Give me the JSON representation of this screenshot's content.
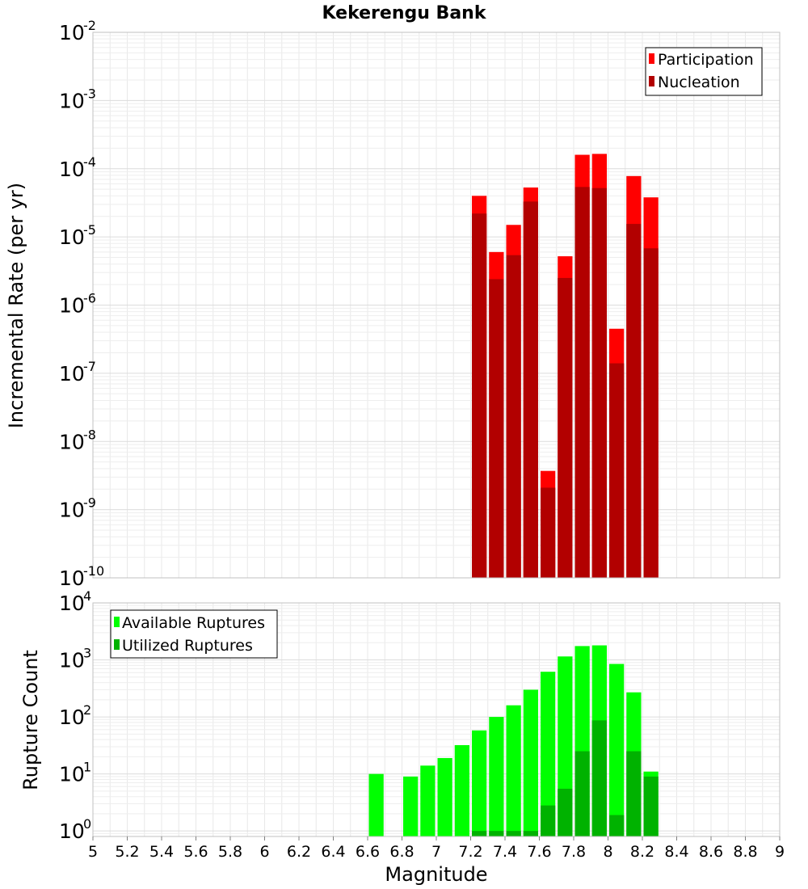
{
  "chart_data": [
    {
      "type": "bar",
      "title": "Kekerengu Bank",
      "ylabel": "Incremental Rate (per yr)",
      "xlabel": "",
      "xlim": [
        5,
        9
      ],
      "ylim": [
        1e-10,
        0.01
      ],
      "yscale": "log",
      "grid": true,
      "legend_position": "top-right",
      "bin_width": 0.1,
      "x": [
        7.25,
        7.35,
        7.45,
        7.55,
        7.65,
        7.75,
        7.85,
        7.95,
        8.05,
        8.15,
        8.25
      ],
      "y_tick_exponents": [
        -10,
        -9,
        -8,
        -7,
        -6,
        -5,
        -4,
        -3,
        -2
      ],
      "series": [
        {
          "name": "Participation",
          "color": "#ff0000",
          "values": [
            4e-05,
            6e-06,
            1.5e-05,
            5.3e-05,
            3.7e-09,
            5.2e-06,
            0.00016,
            0.000165,
            4.5e-07,
            7.8e-05,
            3.8e-05
          ]
        },
        {
          "name": "Nucleation",
          "color": "#b20000",
          "values": [
            2.2e-05,
            2.4e-06,
            5.4e-06,
            3.3e-05,
            2.1e-09,
            2.5e-06,
            5.4e-05,
            5.2e-05,
            1.4e-07,
            1.55e-05,
            6.8e-06
          ]
        }
      ]
    },
    {
      "type": "bar",
      "title": "",
      "ylabel": "Rupture Count",
      "xlabel": "Magnitude",
      "xlim": [
        5,
        9
      ],
      "ylim": [
        0.8,
        10000.0
      ],
      "yscale": "log",
      "grid": true,
      "legend_position": "top-left",
      "bin_width": 0.1,
      "x": [
        6.65,
        6.85,
        6.95,
        7.05,
        7.15,
        7.25,
        7.35,
        7.45,
        7.55,
        7.65,
        7.75,
        7.85,
        7.95,
        8.05,
        8.15,
        8.25
      ],
      "x_ticks": [
        "5",
        "5.2",
        "5.4",
        "5.6",
        "5.8",
        "6",
        "6.2",
        "6.4",
        "6.6",
        "6.8",
        "7",
        "7.2",
        "7.4",
        "7.6",
        "7.8",
        "8",
        "8.2",
        "8.4",
        "8.6",
        "8.8",
        "9"
      ],
      "y_tick_exponents": [
        0,
        1,
        2,
        3,
        4
      ],
      "series": [
        {
          "name": "Available Ruptures",
          "color": "#00ff00",
          "values": [
            10,
            9,
            14,
            19,
            32,
            58,
            100,
            160,
            300,
            620,
            1150,
            1750,
            1800,
            850,
            270,
            11
          ]
        },
        {
          "name": "Utilized Ruptures",
          "color": "#00b200",
          "values": [
            0,
            0,
            0,
            0,
            0,
            1,
            1,
            1,
            1,
            2.8,
            5.5,
            25,
            87,
            1.9,
            25,
            9
          ]
        }
      ]
    }
  ]
}
